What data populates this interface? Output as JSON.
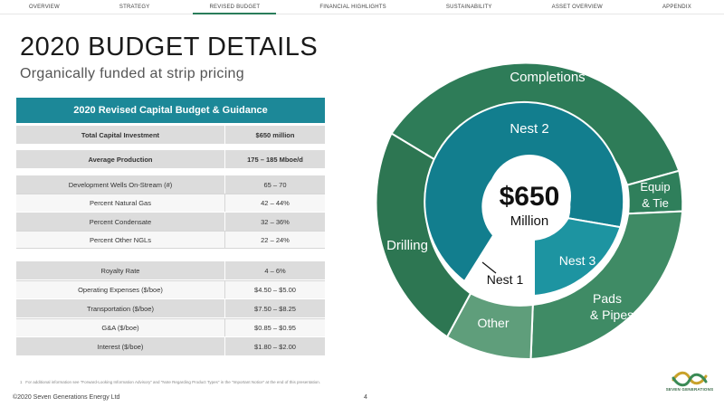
{
  "nav": {
    "items": [
      {
        "label": "OVERVIEW"
      },
      {
        "label": "STRATEGY"
      },
      {
        "label": "REVISED BUDGET",
        "active": true
      },
      {
        "label": "FINANCIAL HIGHLIGHTS"
      },
      {
        "label": "SUSTAINABILITY"
      },
      {
        "label": "ASSET OVERVIEW"
      },
      {
        "label": "APPENDIX"
      }
    ]
  },
  "page": {
    "title": "2020 BUDGET DETAILS",
    "subtitle": "Organically funded at strip pricing"
  },
  "table": {
    "header": "2020 Revised Capital Budget & Guidance",
    "rows": [
      {
        "label": "Total Capital Investment",
        "value": "$650 million"
      },
      {
        "label": "Average Production",
        "value": "175 – 185 Mboe/d"
      },
      {
        "label": "Development Wells On-Stream (#)",
        "value": "65 – 70"
      },
      {
        "label": "Percent Natural Gas",
        "value": "42 – 44%"
      },
      {
        "label": "Percent Condensate",
        "value": "32 – 36%"
      },
      {
        "label": "Percent Other NGLs",
        "value": "22 – 24%"
      },
      {
        "label": "Royalty Rate",
        "value": "4 – 6%"
      },
      {
        "label": "Operating Expenses ($/boe)",
        "value": "$4.50 – $5.00"
      },
      {
        "label": "Transportation ($/boe)",
        "value": "$7.50 – $8.25"
      },
      {
        "label": "G&A ($/boe)",
        "value": "$0.85 – $0.95"
      },
      {
        "label": "Interest ($/boe)",
        "value": "$1.80 – $2.00"
      }
    ]
  },
  "chart_data": {
    "type": "pie",
    "subtype": "sunburst",
    "center_value": "$650",
    "center_unit": "Million",
    "inner_ring": [
      {
        "label": "Nest 2",
        "color": "#127e8e"
      },
      {
        "label": "Nest 3",
        "color": "#1d94a1"
      },
      {
        "label": "Nest 1",
        "color": "#ffffff"
      }
    ],
    "outer_ring": [
      {
        "label": "Completions",
        "color": "#2e7c58"
      },
      {
        "label": "Equip & Tie",
        "color": "#2f7f5b"
      },
      {
        "label": "Pads & Pipes",
        "color": "#3f8b65"
      },
      {
        "label": "Other",
        "color": "#5f9e7b"
      },
      {
        "label": "Drilling",
        "color": "#2d7652"
      }
    ],
    "outer_labels": {
      "completions": "Completions",
      "equip_line1": "Equip",
      "equip_line2": "& Tie",
      "pads_line1": "Pads",
      "pads_line2": "& Pipes",
      "other": "Other",
      "drilling": "Drilling"
    }
  },
  "footer": {
    "footnote_number": "1",
    "footnote": "For additional information see \"Forward-Looking Information Advisory\" and \"Note Regarding Product Types\" in the \"Important Notice\" at the end of this presentation.",
    "copyright": "©2020 Seven Generations Energy Ltd",
    "page_number": "4",
    "logo_text": "SEVEN GENERATIONS"
  }
}
